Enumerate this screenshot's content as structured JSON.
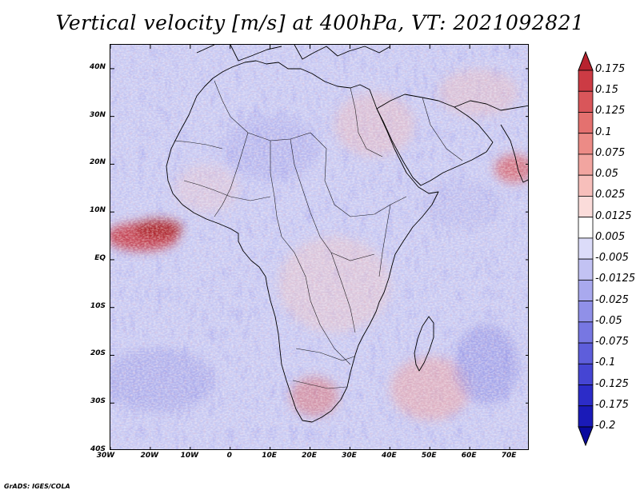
{
  "title": "Vertical velocity [m/s] at 400hPa, VT: 2021092821",
  "credit": "GrADS: IGES/COLA",
  "map": {
    "lon_range": [
      -30,
      75
    ],
    "lat_range": [
      -40,
      45
    ],
    "lat_ticks": [
      {
        "value": 40,
        "label": "40N"
      },
      {
        "value": 30,
        "label": "30N"
      },
      {
        "value": 20,
        "label": "20N"
      },
      {
        "value": 10,
        "label": "10N"
      },
      {
        "value": 0,
        "label": "EQ"
      },
      {
        "value": -10,
        "label": "10S"
      },
      {
        "value": -20,
        "label": "20S"
      },
      {
        "value": -30,
        "label": "30S"
      },
      {
        "value": -40,
        "label": "40S"
      }
    ],
    "lon_ticks": [
      {
        "value": -30,
        "label": "30W"
      },
      {
        "value": -20,
        "label": "20W"
      },
      {
        "value": -10,
        "label": "10W"
      },
      {
        "value": 0,
        "label": "0"
      },
      {
        "value": 10,
        "label": "10E"
      },
      {
        "value": 20,
        "label": "20E"
      },
      {
        "value": 30,
        "label": "30E"
      },
      {
        "value": 40,
        "label": "40E"
      },
      {
        "value": 50,
        "label": "50E"
      },
      {
        "value": 60,
        "label": "60E"
      },
      {
        "value": 70,
        "label": "70E"
      }
    ]
  },
  "colorbar": {
    "labels": [
      "0.175",
      "0.15",
      "0.125",
      "0.1",
      "0.075",
      "0.05",
      "0.025",
      "0.0125",
      "0.005",
      "-0.005",
      "-0.0125",
      "-0.025",
      "-0.05",
      "-0.075",
      "-0.1",
      "-0.125",
      "-0.175",
      "-0.2"
    ],
    "colors": [
      "#b8232f",
      "#cc3b44",
      "#d9565a",
      "#e4716f",
      "#ec8b86",
      "#f2a5a0",
      "#f7bfbb",
      "#fbdcda",
      "#ffffff",
      "#dcdcf9",
      "#c2c2f3",
      "#a9a9ee",
      "#9090e8",
      "#7777e2",
      "#5e5edb",
      "#4545d3",
      "#2c2cc8",
      "#1a1ab8",
      "#0a0a9e"
    ]
  }
}
